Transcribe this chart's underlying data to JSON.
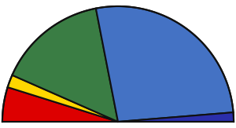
{
  "ordered_segments": [
    {
      "label": "Red",
      "seats": 30,
      "color": "#DD0000"
    },
    {
      "label": "Yellow",
      "seats": 11,
      "color": "#FFD700"
    },
    {
      "label": "Green",
      "seats": 95,
      "color": "#3A7D44"
    },
    {
      "label": "Blue",
      "seats": 166,
      "color": "#4472C4"
    },
    {
      "label": "DarkBlue",
      "seats": 8,
      "color": "#2B2EAA"
    }
  ],
  "background_color": "#ffffff",
  "linewidth": 1.5,
  "edgecolor": "#111111",
  "xlim": [
    -1.02,
    1.02
  ],
  "ylim": [
    -0.02,
    1.02
  ]
}
